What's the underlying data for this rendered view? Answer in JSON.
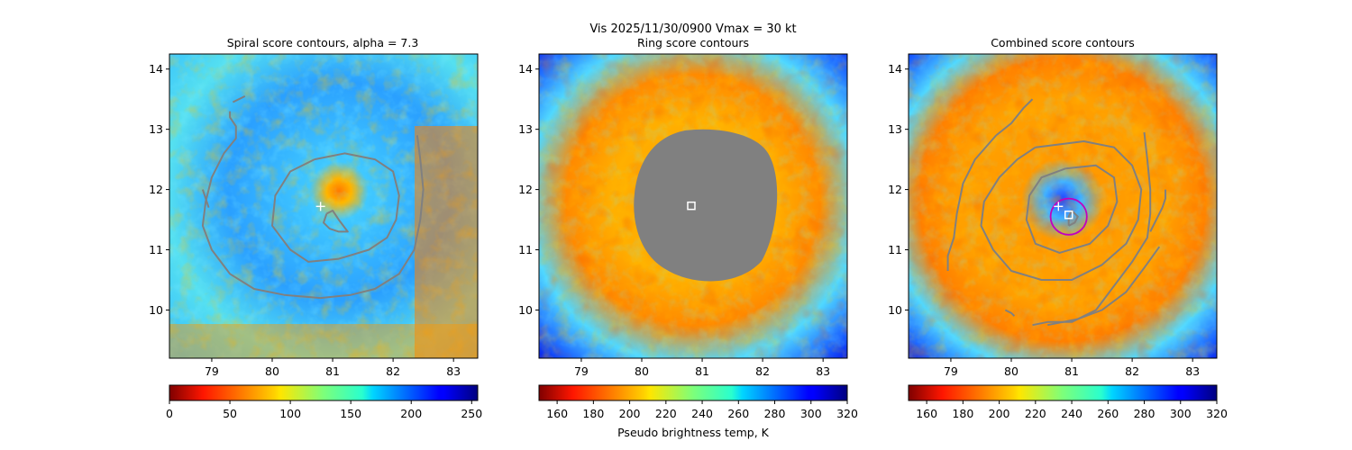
{
  "figure": {
    "suptitle": "Vis  2025/11/30/0900    Vmax = 30 kt",
    "colors": {
      "gray_contour": "#808080",
      "marker_white": "#ffffff",
      "ring_magenta": "#c000c0",
      "gray_fill": "#808080"
    }
  },
  "chart_data": [
    {
      "type": "heatmap",
      "title": "Spiral score contours, alpha =  7.3",
      "xlim": [
        78.3,
        83.4
      ],
      "ylim": [
        9.2,
        14.25
      ],
      "xticks": [
        79,
        80,
        81,
        82,
        83
      ],
      "yticks": [
        10,
        11,
        12,
        13,
        14
      ],
      "colormap": "jet",
      "colorbar": {
        "min": 0,
        "max": 255,
        "ticks": [
          0,
          50,
          100,
          150,
          200,
          250
        ],
        "label": ""
      },
      "center_marker": {
        "type": "plus",
        "x": 80.8,
        "y": 11.72
      },
      "contours": [
        {
          "name": "inner",
          "points": [
            [
              80.9,
              11.6
            ],
            [
              81.0,
              11.65
            ],
            [
              81.1,
              11.5
            ],
            [
              81.25,
              11.3
            ],
            [
              81.1,
              11.3
            ],
            [
              80.95,
              11.35
            ],
            [
              80.85,
              11.45
            ],
            [
              80.9,
              11.6
            ]
          ]
        },
        {
          "name": "middle",
          "points": [
            [
              80.7,
              12.5
            ],
            [
              81.2,
              12.6
            ],
            [
              81.7,
              12.5
            ],
            [
              82.0,
              12.3
            ],
            [
              82.1,
              11.9
            ],
            [
              82.05,
              11.5
            ],
            [
              81.9,
              11.2
            ],
            [
              81.6,
              11.0
            ],
            [
              81.1,
              10.85
            ],
            [
              80.6,
              10.8
            ],
            [
              80.3,
              11.0
            ],
            [
              80.0,
              11.4
            ],
            [
              80.05,
              11.9
            ],
            [
              80.3,
              12.3
            ],
            [
              80.7,
              12.5
            ]
          ]
        },
        {
          "name": "outer",
          "points": [
            [
              79.3,
              13.3
            ],
            [
              79.3,
              13.2
            ],
            [
              79.4,
              13.05
            ],
            [
              79.4,
              12.85
            ],
            [
              79.2,
              12.6
            ],
            [
              79.0,
              12.2
            ],
            [
              78.9,
              11.8
            ],
            [
              78.85,
              11.4
            ],
            [
              79.0,
              11.0
            ],
            [
              79.3,
              10.6
            ],
            [
              79.7,
              10.35
            ],
            [
              80.2,
              10.25
            ],
            [
              80.8,
              10.2
            ],
            [
              81.3,
              10.25
            ],
            [
              81.7,
              10.35
            ],
            [
              82.1,
              10.6
            ],
            [
              82.35,
              11.0
            ],
            [
              82.45,
              11.5
            ],
            [
              82.5,
              12.0
            ],
            [
              82.45,
              12.5
            ],
            [
              82.4,
              12.9
            ]
          ]
        },
        {
          "name": "tail-left",
          "points": [
            [
              78.85,
              12.0
            ],
            [
              78.9,
              11.85
            ],
            [
              78.95,
              11.7
            ]
          ]
        },
        {
          "name": "tail-top",
          "points": [
            [
              79.35,
              13.45
            ],
            [
              79.45,
              13.5
            ],
            [
              79.55,
              13.55
            ]
          ]
        }
      ]
    },
    {
      "type": "heatmap",
      "title": "Ring score contours",
      "xlim": [
        78.3,
        83.4
      ],
      "ylim": [
        9.2,
        14.25
      ],
      "xticks": [
        79,
        80,
        81,
        82,
        83
      ],
      "yticks": [
        10,
        11,
        12,
        13,
        14
      ],
      "colormap": "jet_r",
      "colorbar": {
        "min": 150,
        "max": 320,
        "ticks": [
          160,
          180,
          200,
          220,
          240,
          260,
          280,
          300,
          320
        ],
        "label": "Pseudo brightness temp, K"
      },
      "center_marker": {
        "type": "square",
        "x": 80.82,
        "y": 11.73
      },
      "masked_region": {
        "center_x": 80.85,
        "center_y": 11.7,
        "radius_deg": 1.2
      }
    },
    {
      "type": "heatmap",
      "title": "Combined score contours",
      "xlim": [
        78.3,
        83.4
      ],
      "ylim": [
        9.2,
        14.25
      ],
      "xticks": [
        79,
        80,
        81,
        82,
        83
      ],
      "yticks": [
        10,
        11,
        12,
        13,
        14
      ],
      "colormap": "jet_r",
      "colorbar": {
        "min": 150,
        "max": 320,
        "ticks": [
          160,
          180,
          200,
          220,
          240,
          260,
          280,
          300,
          320
        ],
        "label": ""
      },
      "center_marker": {
        "type": "plus",
        "x": 80.78,
        "y": 11.72
      },
      "square_marker": {
        "x": 80.95,
        "y": 11.58
      },
      "ring": {
        "x": 80.95,
        "y": 11.55,
        "radius_deg": 0.3
      },
      "contours": [
        {
          "name": "inner",
          "points": [
            [
              80.95,
              11.4
            ],
            [
              81.05,
              11.45
            ],
            [
              81.1,
              11.55
            ],
            [
              81.0,
              11.65
            ],
            [
              80.95,
              11.55
            ],
            [
              80.95,
              11.4
            ]
          ]
        },
        {
          "name": "middle",
          "points": [
            [
              80.9,
              12.35
            ],
            [
              81.4,
              12.4
            ],
            [
              81.7,
              12.2
            ],
            [
              81.75,
              11.8
            ],
            [
              81.6,
              11.4
            ],
            [
              81.3,
              11.1
            ],
            [
              80.8,
              10.95
            ],
            [
              80.4,
              11.1
            ],
            [
              80.25,
              11.5
            ],
            [
              80.3,
              11.9
            ],
            [
              80.5,
              12.2
            ],
            [
              80.9,
              12.35
            ]
          ]
        },
        {
          "name": "large",
          "points": [
            [
              80.4,
              12.7
            ],
            [
              81.2,
              12.8
            ],
            [
              81.7,
              12.7
            ],
            [
              82.0,
              12.4
            ],
            [
              82.15,
              12.0
            ],
            [
              82.1,
              11.5
            ],
            [
              81.9,
              11.1
            ],
            [
              81.5,
              10.75
            ],
            [
              81.0,
              10.5
            ],
            [
              80.5,
              10.5
            ],
            [
              80.0,
              10.65
            ],
            [
              79.7,
              11.0
            ],
            [
              79.5,
              11.4
            ],
            [
              79.55,
              11.8
            ],
            [
              79.8,
              12.2
            ],
            [
              80.1,
              12.5
            ],
            [
              80.4,
              12.7
            ]
          ]
        },
        {
          "name": "right-arc",
          "points": [
            [
              82.2,
              12.95
            ],
            [
              82.25,
              12.5
            ],
            [
              82.3,
              12.0
            ],
            [
              82.3,
              11.6
            ],
            [
              82.25,
              11.2
            ],
            [
              82.0,
              10.8
            ],
            [
              81.7,
              10.4
            ],
            [
              81.4,
              10.0
            ],
            [
              81.0,
              9.8
            ],
            [
              80.6,
              9.8
            ],
            [
              80.35,
              9.75
            ]
          ]
        },
        {
          "name": "left-arc",
          "points": [
            [
              79.75,
              12.9
            ],
            [
              79.4,
              12.5
            ],
            [
              79.2,
              12.1
            ],
            [
              79.1,
              11.6
            ],
            [
              79.05,
              11.2
            ],
            [
              78.95,
              10.9
            ],
            [
              78.95,
              10.65
            ]
          ]
        },
        {
          "name": "top-arc",
          "points": [
            [
              80.35,
              13.5
            ],
            [
              80.2,
              13.35
            ],
            [
              80.0,
              13.1
            ],
            [
              79.75,
              12.9
            ]
          ]
        },
        {
          "name": "bottom-arc",
          "points": [
            [
              79.9,
              10.0
            ],
            [
              80.0,
              9.95
            ],
            [
              80.05,
              9.9
            ]
          ]
        },
        {
          "name": "right-tail",
          "points": [
            [
              82.55,
              12.0
            ],
            [
              82.55,
              11.85
            ],
            [
              82.5,
              11.7
            ],
            [
              82.4,
              11.5
            ],
            [
              82.3,
              11.3
            ]
          ]
        },
        {
          "name": "lower-right",
          "points": [
            [
              82.45,
              11.05
            ],
            [
              82.2,
              10.7
            ],
            [
              81.9,
              10.3
            ],
            [
              81.5,
              10.0
            ],
            [
              81.1,
              9.85
            ],
            [
              80.6,
              9.75
            ]
          ]
        }
      ]
    }
  ]
}
